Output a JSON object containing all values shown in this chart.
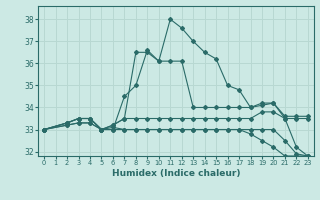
{
  "xlabel": "Humidex (Indice chaleur)",
  "xlim": [
    -0.5,
    23.5
  ],
  "ylim": [
    31.8,
    38.6
  ],
  "yticks": [
    32,
    33,
    34,
    35,
    36,
    37,
    38
  ],
  "xticks": [
    0,
    1,
    2,
    3,
    4,
    5,
    6,
    7,
    8,
    9,
    10,
    11,
    12,
    13,
    14,
    15,
    16,
    17,
    18,
    19,
    20,
    21,
    22,
    23
  ],
  "background_color": "#cce9e4",
  "grid_color": "#b8d8d2",
  "line_color": "#2a6b68",
  "lines": [
    {
      "x": [
        0,
        2,
        3,
        4,
        5,
        6,
        7,
        8,
        9,
        10,
        11,
        12,
        13,
        14,
        15,
        16,
        17,
        18,
        19,
        20,
        21,
        22,
        23
      ],
      "y": [
        33.0,
        33.3,
        33.5,
        33.5,
        33.0,
        33.0,
        34.5,
        35.0,
        36.6,
        36.1,
        38.0,
        37.6,
        37.0,
        36.5,
        36.2,
        35.0,
        34.8,
        34.0,
        34.2,
        34.2,
        33.5,
        32.2,
        31.8
      ]
    },
    {
      "x": [
        0,
        2,
        3,
        4,
        5,
        6,
        7,
        8,
        9,
        10,
        11,
        12,
        13,
        14,
        15,
        16,
        17,
        18,
        19,
        20,
        21,
        22,
        23
      ],
      "y": [
        33.0,
        33.3,
        33.5,
        33.5,
        33.0,
        33.2,
        33.5,
        36.5,
        36.5,
        36.1,
        36.1,
        36.1,
        34.0,
        34.0,
        34.0,
        34.0,
        34.0,
        34.0,
        34.1,
        34.2,
        33.6,
        33.6,
        33.6
      ]
    },
    {
      "x": [
        0,
        2,
        3,
        4,
        5,
        6,
        7,
        8,
        9,
        10,
        11,
        12,
        13,
        14,
        15,
        16,
        17,
        18,
        19,
        20,
        21,
        22,
        23
      ],
      "y": [
        33.0,
        33.3,
        33.5,
        33.5,
        33.0,
        33.2,
        33.5,
        33.5,
        33.5,
        33.5,
        33.5,
        33.5,
        33.5,
        33.5,
        33.5,
        33.5,
        33.5,
        33.5,
        33.8,
        33.8,
        33.5,
        33.5,
        33.5
      ]
    },
    {
      "x": [
        0,
        2,
        3,
        4,
        5,
        6,
        7,
        8,
        9,
        10,
        11,
        12,
        13,
        14,
        15,
        16,
        17,
        18,
        19,
        20,
        21,
        22,
        23
      ],
      "y": [
        33.0,
        33.2,
        33.3,
        33.3,
        33.0,
        33.1,
        33.0,
        33.0,
        33.0,
        33.0,
        33.0,
        33.0,
        33.0,
        33.0,
        33.0,
        33.0,
        33.0,
        33.0,
        33.0,
        33.0,
        32.5,
        31.9,
        31.8
      ]
    },
    {
      "x": [
        0,
        2,
        3,
        4,
        5,
        6,
        7,
        8,
        9,
        10,
        11,
        12,
        13,
        14,
        15,
        16,
        17,
        18,
        19,
        20,
        21,
        22,
        23
      ],
      "y": [
        33.0,
        33.2,
        33.3,
        33.3,
        33.0,
        33.0,
        33.0,
        33.0,
        33.0,
        33.0,
        33.0,
        33.0,
        33.0,
        33.0,
        33.0,
        33.0,
        33.0,
        32.8,
        32.5,
        32.2,
        31.8,
        31.8,
        31.8
      ]
    }
  ]
}
